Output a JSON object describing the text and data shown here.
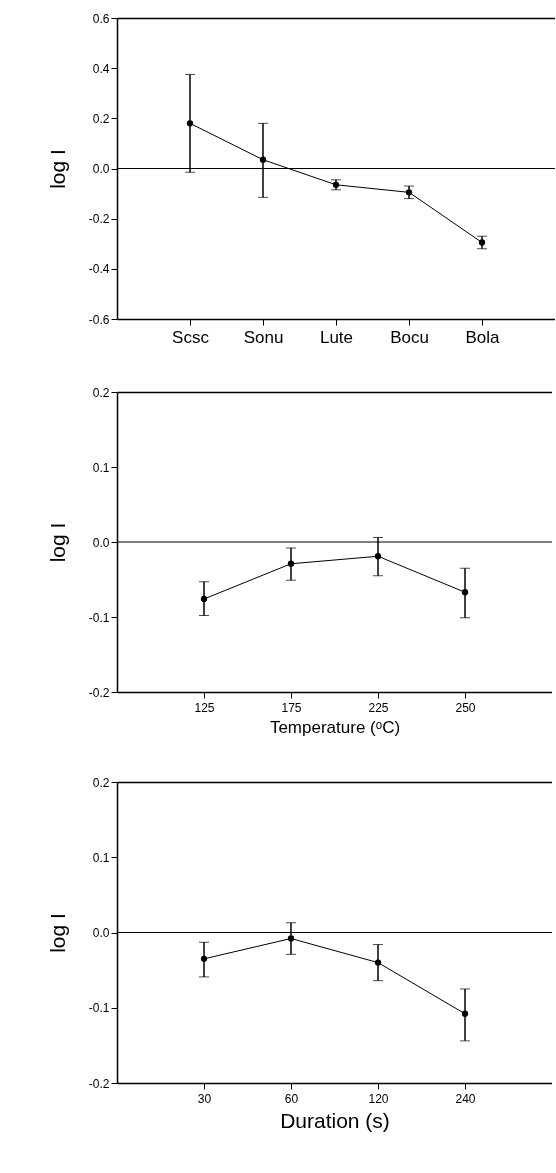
{
  "chart_data": [
    {
      "type": "line",
      "ylabel": "log I",
      "categories": [
        "Scsc",
        "Sonu",
        "Lute",
        "Bocu",
        "Bola"
      ],
      "values": [
        0.18,
        0.035,
        -0.065,
        -0.095,
        -0.295
      ],
      "errors": [
        [
          -0.015,
          0.375
        ],
        [
          -0.115,
          0.18
        ],
        [
          -0.085,
          -0.045
        ],
        [
          -0.12,
          -0.07
        ],
        [
          -0.32,
          -0.27
        ]
      ],
      "color": "#000000",
      "marker": "circle",
      "ylim": [
        -0.6,
        0.6
      ],
      "yticks": [
        {
          "value": -0.6,
          "label": "-0.6"
        },
        {
          "value": -0.4,
          "label": "-0.4"
        },
        {
          "value": -0.2,
          "label": "-0.2"
        },
        {
          "value": 0,
          "label": "0.0"
        },
        {
          "value": 0.2,
          "label": "0.2"
        },
        {
          "value": 0.4,
          "label": "0.4"
        },
        {
          "value": 0.6,
          "label": "0.6"
        }
      ],
      "ref_lines": [
        {
          "axis": "y",
          "value": 0
        }
      ],
      "grid": false
    },
    {
      "type": "line",
      "ylabel": "log I",
      "xlabel": "Temperature (ᵒC)",
      "categories": [
        "125",
        "175",
        "225",
        "250"
      ],
      "values": [
        -0.076,
        -0.029,
        -0.019,
        -0.067
      ],
      "errors": [
        [
          -0.098,
          -0.053
        ],
        [
          -0.051,
          -0.008
        ],
        [
          -0.045,
          0.006
        ],
        [
          -0.101,
          -0.035
        ]
      ],
      "color": "#000000",
      "marker": "circle",
      "ylim": [
        -0.2,
        0.2
      ],
      "yticks": [
        {
          "value": -0.2,
          "label": "-0.2"
        },
        {
          "value": -0.1,
          "label": "-0.1"
        },
        {
          "value": 0,
          "label": "0.0"
        },
        {
          "value": 0.1,
          "label": "0.1"
        },
        {
          "value": 0.2,
          "label": "0.2"
        }
      ],
      "ref_lines": [
        {
          "axis": "y",
          "value": 0
        }
      ],
      "grid": false
    },
    {
      "type": "line",
      "ylabel": "log I",
      "xlabel": "Duration (s)",
      "categories": [
        "30",
        "60",
        "120",
        "240"
      ],
      "values": [
        -0.035,
        -0.008,
        -0.04,
        -0.108
      ],
      "errors": [
        [
          -0.059,
          -0.013
        ],
        [
          -0.029,
          0.013
        ],
        [
          -0.064,
          -0.016
        ],
        [
          -0.144,
          -0.075
        ]
      ],
      "color": "#000000",
      "marker": "circle",
      "ylim": [
        -0.2,
        0.2
      ],
      "yticks": [
        {
          "value": -0.2,
          "label": "-0.2"
        },
        {
          "value": -0.1,
          "label": "-0.1"
        },
        {
          "value": 0,
          "label": "0.0"
        },
        {
          "value": 0.1,
          "label": "0.1"
        },
        {
          "value": 0.2,
          "label": "0.2"
        }
      ],
      "ref_lines": [
        {
          "axis": "y",
          "value": 0
        }
      ],
      "grid": false
    }
  ]
}
